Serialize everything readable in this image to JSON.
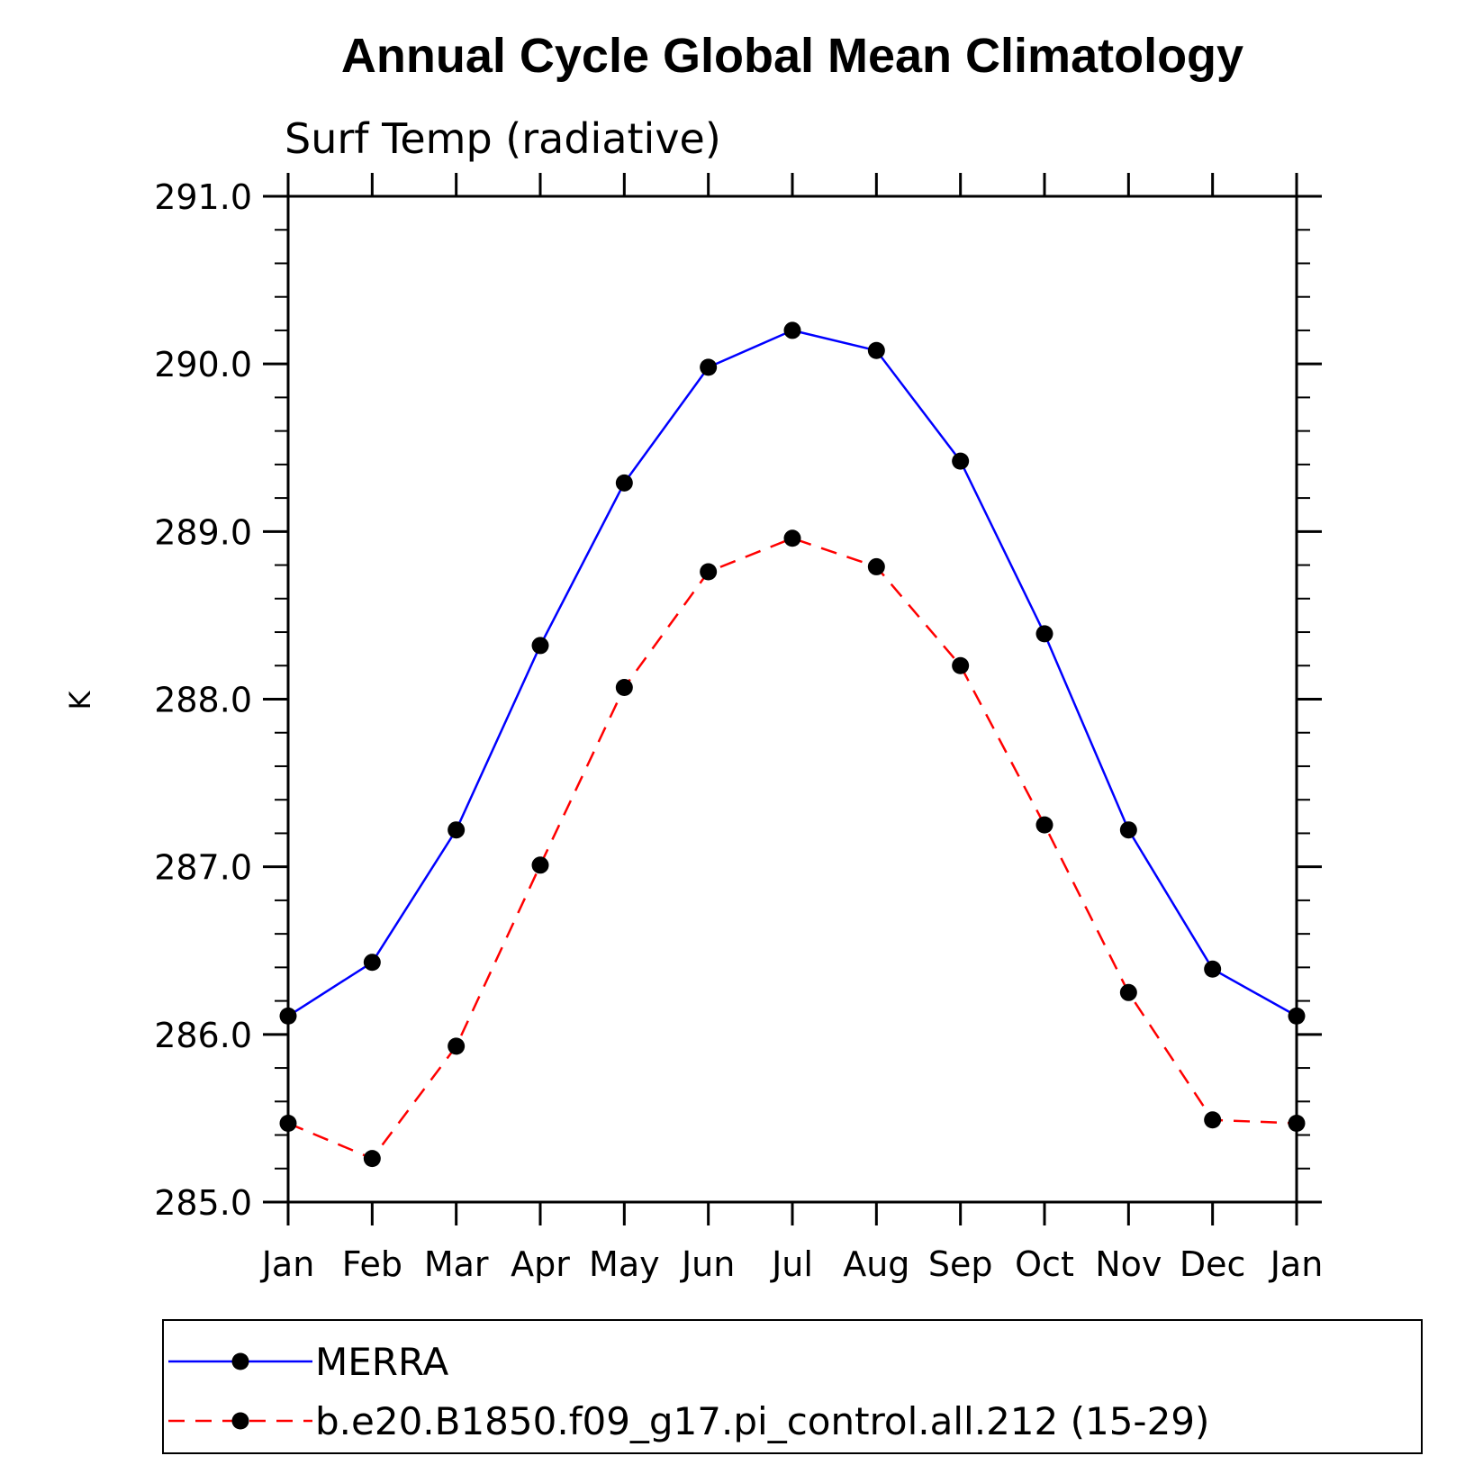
{
  "chart_data": {
    "type": "line",
    "title": "Annual Cycle Global Mean Climatology",
    "subtitle": "Surf Temp (radiative)",
    "ylabel": "K",
    "xlabel": "",
    "categories": [
      "Jan",
      "Feb",
      "Mar",
      "Apr",
      "May",
      "Jun",
      "Jul",
      "Aug",
      "Sep",
      "Oct",
      "Nov",
      "Dec",
      "Jan"
    ],
    "ylim": [
      285.0,
      291.0
    ],
    "yticks": [
      "285.0",
      "286.0",
      "287.0",
      "288.0",
      "289.0",
      "290.0",
      "291.0"
    ],
    "grid": false,
    "legend_position": "bottom",
    "series": [
      {
        "name": "MERRA",
        "color": "#0000ff",
        "dash": "solid",
        "values": [
          286.11,
          286.43,
          287.22,
          288.32,
          289.29,
          289.98,
          290.2,
          290.08,
          289.42,
          288.39,
          287.22,
          286.39,
          286.11
        ]
      },
      {
        "name": "b.e20.B1850.f09_g17.pi_control.all.212 (15-29)",
        "color": "#ff0000",
        "dash": "dashed",
        "values": [
          285.47,
          285.26,
          285.93,
          287.01,
          288.07,
          288.76,
          288.96,
          288.79,
          288.2,
          287.25,
          286.25,
          285.49,
          285.47
        ]
      }
    ]
  }
}
